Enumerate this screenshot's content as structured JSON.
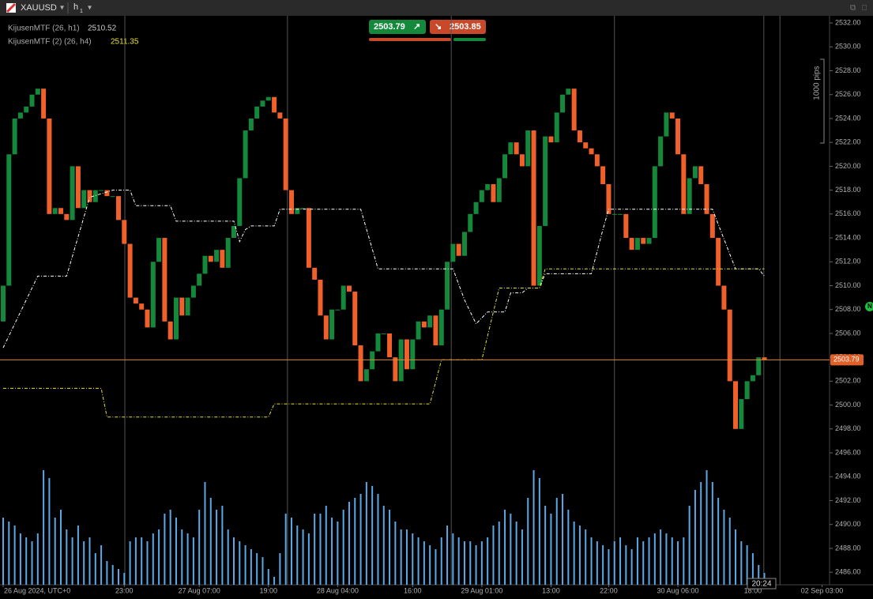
{
  "header": {
    "symbol": "XAUUSD",
    "timeframe_unit": "h",
    "timeframe_count": 1
  },
  "quote": {
    "bid": 2503.79,
    "ask": 2503.85
  },
  "indicators": [
    {
      "name": "KijusenMTF (26, h1)",
      "value": 2510.52
    },
    {
      "name": "KijusenMTF (2) (26, h4)",
      "value": 2511.35
    }
  ],
  "pips_label": "1000 pips",
  "countdown": "20:24",
  "marker": "N",
  "chart_data": {
    "type": "candlestick",
    "up_color": "#14893b",
    "down_color": "#f0602a",
    "ylim": [
      2484.95,
      2532.6
    ],
    "yticks": [
      {
        "value": 2486,
        "label": "2486.00"
      },
      {
        "value": 2488,
        "label": "2488.00"
      },
      {
        "value": 2490,
        "label": "2490.00"
      },
      {
        "value": 2492,
        "label": "2492.00"
      },
      {
        "value": 2494,
        "label": "2494.00"
      },
      {
        "value": 2496,
        "label": "2496.00"
      },
      {
        "value": 2498,
        "label": "2498.00"
      },
      {
        "value": 2500,
        "label": "2500.00"
      },
      {
        "value": 2502,
        "label": "2502.00"
      },
      {
        "value": 2504,
        "label": "2504.00"
      },
      {
        "value": 2506,
        "label": "2506.00"
      },
      {
        "value": 2508,
        "label": "2508.00"
      },
      {
        "value": 2510,
        "label": "2510.00"
      },
      {
        "value": 2512,
        "label": "2512.00"
      },
      {
        "value": 2514,
        "label": "2514.00"
      },
      {
        "value": 2516,
        "label": "2516.00"
      },
      {
        "value": 2518,
        "label": "2518.00"
      },
      {
        "value": 2520,
        "label": "2520.00"
      },
      {
        "value": 2522,
        "label": "2522.00"
      },
      {
        "value": 2524,
        "label": "2524.00"
      },
      {
        "value": 2526,
        "label": "2526.00"
      },
      {
        "value": 2528,
        "label": "2528.00"
      },
      {
        "value": 2530,
        "label": "2530.00"
      },
      {
        "value": 2532,
        "label": "2532.00"
      }
    ],
    "xlim": [
      -0.55,
      143.3
    ],
    "xticks": [
      {
        "value": 0,
        "label": "26 Aug 2024, UTC+0"
      },
      {
        "value": 21,
        "label": "23:00"
      },
      {
        "value": 34,
        "label": "27 Aug 07:00"
      },
      {
        "value": 46,
        "label": "19:00"
      },
      {
        "value": 58,
        "label": "28 Aug 04:00"
      },
      {
        "value": 71,
        "label": "16:00"
      },
      {
        "value": 83,
        "label": "29 Aug 01:00"
      },
      {
        "value": 95,
        "label": "13:00"
      },
      {
        "value": 105,
        "label": "22:00"
      },
      {
        "value": 117,
        "label": "30 Aug 06:00"
      },
      {
        "value": 130,
        "label": "18:00"
      },
      {
        "value": 142,
        "label": "02 Sep 03:00"
      }
    ],
    "separators": [
      21.1,
      49.3,
      77.7,
      106,
      131.9,
      134.7
    ],
    "open": [
      2507,
      2510,
      2521,
      2524,
      2524.5,
      2525,
      2526,
      2526.5,
      2524,
      2516,
      2516.5,
      2516,
      2515.5,
      2520,
      2516.5,
      2518,
      2517,
      2518,
      2518,
      2517.5,
      2517.5,
      2515.5,
      2513.5,
      2509,
      2508.5,
      2508,
      2506.5,
      2512,
      2514,
      2507,
      2505.5,
      2509,
      2507.5,
      2509,
      2510,
      2511,
      2512.5,
      2512,
      2513,
      2511.5,
      2514,
      2515,
      2519,
      2523,
      2524,
      2525,
      2525.5,
      2525.8,
      2524.5,
      2524,
      2518,
      2516,
      2516.5,
      2516.5,
      2511.5,
      2510.5,
      2507.5,
      2505.5,
      2508,
      2508,
      2510,
      2509.5,
      2505,
      2502,
      2503,
      2504.5,
      2506,
      2506,
      2504,
      2502,
      2505.5,
      2503,
      2505.5,
      2507,
      2506.5,
      2507.5,
      2505,
      2508,
      2512,
      2513.5,
      2512.5,
      2514.5,
      2516,
      2517,
      2518,
      2518.5,
      2517,
      2519,
      2521,
      2522,
      2521,
      2520,
      2523,
      2510,
      2515,
      2522.5,
      2522,
      2524.5,
      2526,
      2526.5,
      2523,
      2522,
      2521.5,
      2521,
      2520,
      2518.5,
      2516,
      2516,
      2516,
      2514,
      2513,
      2514,
      2513.5,
      2514,
      2520,
      2522.5,
      2524.5,
      2524,
      2521,
      2516,
      2519,
      2520,
      2518.5,
      2516,
      2514,
      2510,
      2508,
      2502,
      2498,
      2500.5,
      2502,
      2502.5,
      2504
    ],
    "close": [
      2510,
      2521,
      2524,
      2524.5,
      2525,
      2526,
      2526.5,
      2524,
      2516,
      2516.5,
      2516,
      2515.5,
      2520,
      2516.5,
      2518,
      2517,
      2518,
      2518,
      2517.5,
      2517.5,
      2515.5,
      2513.5,
      2509,
      2508.5,
      2508,
      2506.5,
      2512,
      2514,
      2507,
      2505.5,
      2509,
      2507.5,
      2509,
      2510,
      2511,
      2512.5,
      2512,
      2513,
      2511.5,
      2514,
      2515,
      2519,
      2523,
      2524,
      2525,
      2525.5,
      2525.8,
      2524.5,
      2524,
      2518,
      2516,
      2516.5,
      2516.5,
      2511.5,
      2510.5,
      2507.5,
      2505.5,
      2508,
      2508,
      2510,
      2509.5,
      2505,
      2502,
      2503,
      2504.5,
      2506,
      2506,
      2504,
      2502,
      2505.5,
      2503,
      2505.5,
      2507,
      2506.5,
      2507.5,
      2505,
      2508,
      2512,
      2513.5,
      2512.5,
      2514.5,
      2516,
      2517,
      2518,
      2518.5,
      2517,
      2519,
      2521,
      2522,
      2521,
      2520,
      2523,
      2510,
      2515,
      2522.5,
      2522,
      2524.5,
      2526,
      2526.5,
      2523,
      2522,
      2521.5,
      2521,
      2520,
      2518.5,
      2516,
      2516,
      2516,
      2514,
      2513,
      2514,
      2513.5,
      2514,
      2520,
      2522.5,
      2524.5,
      2524,
      2521,
      2516,
      2519,
      2520,
      2518.5,
      2516,
      2514,
      2510,
      2508,
      2502,
      2498,
      2500.5,
      2502,
      2502.5,
      2504,
      2503.79
    ],
    "volume_color": "#5aa8e6",
    "volume_lim": [
      0,
      160
    ],
    "volume": [
      85,
      80,
      75,
      65,
      60,
      55,
      65,
      145,
      135,
      85,
      95,
      70,
      60,
      75,
      55,
      60,
      40,
      50,
      30,
      25,
      20,
      15,
      55,
      60,
      60,
      55,
      65,
      70,
      90,
      95,
      85,
      70,
      65,
      60,
      95,
      130,
      110,
      95,
      100,
      70,
      60,
      55,
      50,
      45,
      40,
      35,
      20,
      10,
      40,
      90,
      85,
      75,
      70,
      65,
      90,
      90,
      100,
      85,
      80,
      95,
      105,
      110,
      115,
      130,
      125,
      115,
      100,
      95,
      80,
      70,
      70,
      65,
      60,
      55,
      50,
      45,
      60,
      75,
      65,
      60,
      55,
      55,
      50,
      55,
      60,
      75,
      80,
      95,
      90,
      80,
      70,
      110,
      145,
      135,
      100,
      90,
      110,
      115,
      95,
      80,
      75,
      70,
      60,
      55,
      50,
      45,
      55,
      60,
      50,
      45,
      60,
      55,
      60,
      65,
      70,
      65,
      60,
      55,
      60,
      100,
      120,
      130,
      145,
      130,
      110,
      95,
      85,
      70,
      55,
      50,
      40,
      25,
      15
    ],
    "lines": [
      {
        "color": "#ffffff",
        "x": [
          0,
          6,
          11,
          15,
          19,
          22,
          23,
          29,
          30,
          40,
          41,
          42,
          43,
          47,
          48,
          62,
          65,
          78,
          80,
          82,
          84,
          87,
          88,
          90,
          91,
          93,
          94,
          102,
          104,
          105,
          123,
          127,
          131,
          132
        ],
        "values": [
          2504.8,
          2510.8,
          2510.8,
          2517.4,
          2518,
          2518,
          2516.7,
          2516.7,
          2515.4,
          2515.4,
          2513.7,
          2514.7,
          2515,
          2515,
          2516.4,
          2516.4,
          2511.4,
          2511.4,
          2508.8,
          2506.8,
          2507.8,
          2507.8,
          2509.4,
          2509.4,
          2509.8,
          2509.8,
          2511,
          2511,
          2514.7,
          2516.4,
          2516.4,
          2511.4,
          2511.4,
          2510.8
        ]
      },
      {
        "color": "#e8e030",
        "x": [
          0,
          17,
          18,
          46,
          47,
          74,
          76,
          77,
          83,
          86,
          93,
          94,
          132
        ],
        "values": [
          2501.4,
          2501.4,
          2499,
          2499,
          2500.1,
          2500.1,
          2503.8,
          2503.8,
          2503.8,
          2509.8,
          2509.8,
          2511.4,
          2511.4
        ]
      }
    ]
  }
}
